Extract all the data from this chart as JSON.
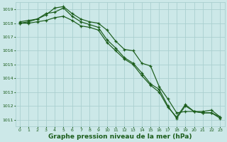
{
  "background_color": "#cce8e8",
  "grid_color": "#aacfcf",
  "line_color": "#1a5c1a",
  "xlabel": "Graphe pression niveau de la mer (hPa)",
  "xlabel_fontsize": 6.5,
  "ylim": [
    1010.5,
    1019.5
  ],
  "xlim": [
    -0.5,
    23.5
  ],
  "yticks": [
    1011,
    1012,
    1013,
    1014,
    1015,
    1016,
    1017,
    1018,
    1019
  ],
  "xticks": [
    0,
    1,
    2,
    3,
    4,
    5,
    6,
    7,
    8,
    9,
    10,
    11,
    12,
    13,
    14,
    15,
    16,
    17,
    18,
    19,
    20,
    21,
    22,
    23
  ],
  "line1_x": [
    0,
    1,
    2,
    3,
    4,
    5,
    6,
    7,
    8,
    9,
    10,
    11,
    12,
    13,
    14,
    15,
    16,
    17,
    18,
    19,
    20,
    21,
    22,
    23
  ],
  "line1_y": [
    1018.1,
    1018.2,
    1018.3,
    1018.6,
    1019.1,
    1019.2,
    1018.7,
    1018.3,
    1018.1,
    1018.0,
    1017.5,
    1016.7,
    1016.1,
    1016.0,
    1015.1,
    1014.9,
    1013.4,
    1012.5,
    1011.5,
    1011.6,
    1011.6,
    1011.6,
    1011.7,
    1011.2
  ],
  "line2_x": [
    0,
    1,
    2,
    3,
    4,
    5,
    6,
    7,
    8,
    9,
    10,
    11,
    12,
    13,
    14,
    15,
    16,
    17,
    18,
    19,
    20,
    21,
    22,
    23
  ],
  "line2_y": [
    1018.0,
    1018.1,
    1018.3,
    1018.7,
    1018.8,
    1019.1,
    1018.5,
    1018.1,
    1017.9,
    1017.7,
    1016.8,
    1016.2,
    1015.5,
    1015.1,
    1014.4,
    1013.6,
    1013.2,
    1012.0,
    1011.1,
    1012.0,
    1011.6,
    1011.5,
    1011.5,
    1011.2
  ],
  "line3_x": [
    0,
    1,
    2,
    3,
    4,
    5,
    6,
    7,
    8,
    9,
    10,
    11,
    12,
    13,
    14,
    15,
    16,
    17,
    18,
    19,
    20,
    21,
    22,
    23
  ],
  "line3_y": [
    1018.0,
    1018.0,
    1018.1,
    1018.2,
    1018.4,
    1018.5,
    1018.2,
    1017.8,
    1017.7,
    1017.5,
    1016.6,
    1016.0,
    1015.4,
    1015.0,
    1014.2,
    1013.5,
    1013.0,
    1011.9,
    1011.2,
    1012.1,
    1011.6,
    1011.5,
    1011.5,
    1011.1
  ]
}
